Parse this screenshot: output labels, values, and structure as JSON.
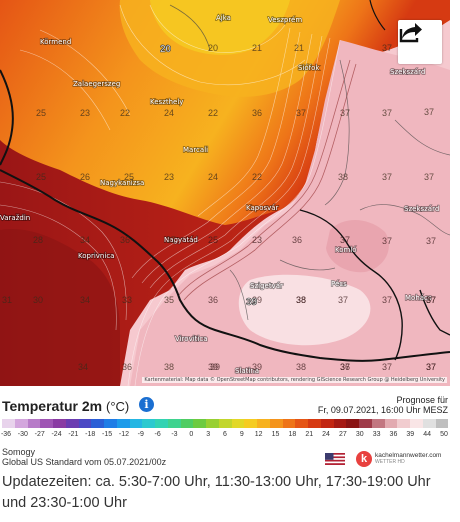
{
  "map": {
    "places": [
      {
        "name": "Ajka"
      },
      {
        "name": "Veszprém"
      },
      {
        "name": "Körmend"
      },
      {
        "name": "Siófok"
      },
      {
        "name": "Szekszárd"
      },
      {
        "name": "Zalaegerszeg"
      },
      {
        "name": "Keszthely"
      },
      {
        "name": "Marcali"
      },
      {
        "name": "Nagykanizsa"
      },
      {
        "name": "Kaposvár"
      },
      {
        "name": "Szekszárd"
      },
      {
        "name": "Varaždin"
      },
      {
        "name": "Komló"
      },
      {
        "name": "Koprivnica"
      },
      {
        "name": "Nagyatád"
      },
      {
        "name": "Pécs"
      },
      {
        "name": "Szigetvár"
      },
      {
        "name": "Mohács"
      },
      {
        "name": "Virovitica"
      },
      {
        "name": "Slatina"
      }
    ],
    "temperatures": [
      "20",
      "20",
      "21",
      "21",
      "37",
      "37",
      "25",
      "23",
      "22",
      "24",
      "22",
      "36",
      "37",
      "37",
      "37",
      "25",
      "25",
      "23",
      "24",
      "22",
      "37",
      "37",
      "37",
      "28",
      "26",
      "25",
      "23",
      "36",
      "38",
      "37",
      "37",
      "30",
      "34",
      "36",
      "37",
      "37",
      "37",
      "37",
      "31",
      "34",
      "33",
      "35",
      "36",
      "38",
      "37",
      "37",
      "37",
      "34",
      "39",
      "39",
      "38",
      "37",
      "37",
      "36",
      "38",
      "39",
      "39",
      "38",
      "36",
      "37"
    ],
    "highlight_temps": [
      "20",
      "39"
    ],
    "attribution": "Kartenmaterial: Map data © OpenStreetMap contributors, rendering GIScience Research Group @ Heidelberg University",
    "share_icon": "share-icon"
  },
  "legend": {
    "title": "Temperatur 2m",
    "unit": "(°C)",
    "info_icon": "info-icon",
    "forecast_label": "Prognose für",
    "forecast_time": "Fr, 09.07.2021, 16:00 Uhr MESZ",
    "colors": [
      "#e8d3ec",
      "#d3a6dd",
      "#b77bc8",
      "#9f55b4",
      "#8a3ba3",
      "#6b3cb1",
      "#4b48c4",
      "#2b5fd6",
      "#1f7de6",
      "#1e9bea",
      "#25b6e3",
      "#2cc9cf",
      "#33d3b3",
      "#3fd38f",
      "#4fcd63",
      "#6dcb40",
      "#98d032",
      "#c2d62c",
      "#e2d827",
      "#f5cc22",
      "#f7b21f",
      "#f4941c",
      "#ee7418",
      "#e55515",
      "#d63a12",
      "#c22612",
      "#a51a14",
      "#8a1414",
      "#9f3b49",
      "#c27781",
      "#e2aab0",
      "#f1cccf",
      "#f9e5e6",
      "#e0e0e0",
      "#bfbfbf"
    ],
    "ticks": [
      "-36",
      "-30",
      "-27",
      "-24",
      "-21",
      "-18",
      "-15",
      "-12",
      "-9",
      "-6",
      "-3",
      "0",
      "3",
      "6",
      "9",
      "12",
      "15",
      "18",
      "21",
      "24",
      "27",
      "30",
      "33",
      "36",
      "39",
      "44",
      "50"
    ]
  },
  "meta": {
    "region": "Somogy",
    "model": "Global US Standard vom 05.07.2021/00z",
    "flag_icon": "us-flag-icon",
    "brand": "kachelmannwetter.com",
    "brand_sub": "WETTER HD"
  },
  "update_text": "Updatezeiten: ca. 5:30-7:00 Uhr, 11:30-13:00 Uhr, 17:30-19:00 Uhr und 23:30-1:00 Uhr"
}
